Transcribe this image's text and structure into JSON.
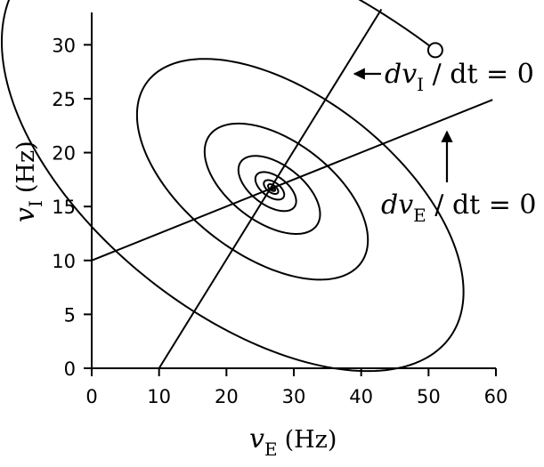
{
  "chart_data": {
    "type": "line",
    "title": "",
    "xlabel": {
      "symbol": "v",
      "subscript": "E",
      "unit": "(Hz)"
    },
    "ylabel": {
      "symbol": "v",
      "subscript": "I",
      "unit": "(Hz)"
    },
    "xlim": [
      0,
      60
    ],
    "ylim": [
      0,
      33
    ],
    "xticks": [
      0,
      10,
      20,
      30,
      40,
      50,
      60
    ],
    "yticks": [
      0,
      5,
      10,
      15,
      20,
      25,
      30
    ],
    "grid": false,
    "series": [
      {
        "name": "dvI/dt = 0 nullcline",
        "points": [
          [
            10,
            0
          ],
          [
            43,
            33.3
          ]
        ]
      },
      {
        "name": "dvE/dt = 0 nullcline",
        "points": [
          [
            0,
            10
          ],
          [
            59.5,
            24.9
          ]
        ]
      },
      {
        "name": "trajectory",
        "start": [
          51,
          29.5
        ],
        "fixed_point": [
          26.8,
          16.7
        ],
        "decay_per_turn": 0.5,
        "turns": 7,
        "initial_radius": {
          "a": 21.5,
          "b": 11.5
        },
        "rotation_deg": 37
      }
    ],
    "annotations": [
      {
        "id": "dvI",
        "symbol": "dv",
        "subscript": "I",
        "rest": " / dt = 0",
        "label": "dvI / dt = 0",
        "arrow": "left"
      },
      {
        "id": "dvE",
        "symbol": "dv",
        "subscript": "E",
        "rest": " / dt = 0",
        "label": "dvE / dt = 0",
        "arrow": "up"
      }
    ]
  }
}
